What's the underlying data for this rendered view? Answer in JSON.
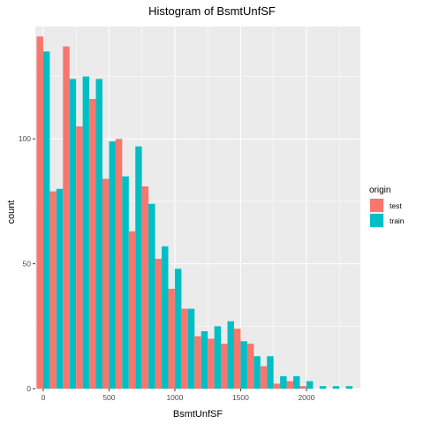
{
  "chart_data": {
    "type": "bar",
    "title": "Histogram of BsmtUnfSF",
    "xlabel": "BsmtUnfSF",
    "ylabel": "count",
    "xlim": [
      -60,
      2410
    ],
    "ylim": [
      0,
      145
    ],
    "x_ticks": [
      0,
      500,
      1000,
      1500,
      2000
    ],
    "y_ticks": [
      0,
      50,
      100
    ],
    "bin_centers": [
      0,
      100,
      200,
      300,
      400,
      500,
      600,
      700,
      800,
      900,
      1000,
      1100,
      1200,
      1300,
      1400,
      1500,
      1600,
      1700,
      1800,
      1900,
      2000,
      2100,
      2200,
      2300
    ],
    "series": [
      {
        "name": "test",
        "color": "#F8766D",
        "values": [
          141,
          79,
          137,
          105,
          116,
          84,
          100,
          63,
          81,
          52,
          40,
          32,
          21,
          20,
          18,
          24,
          18,
          9,
          2,
          3,
          1,
          0,
          0,
          0
        ]
      },
      {
        "name": "train",
        "color": "#00BFC4",
        "values": [
          135,
          80,
          124,
          125,
          124,
          99,
          85,
          97,
          74,
          57,
          48,
          32,
          23,
          25,
          27,
          19,
          13,
          13,
          5,
          5,
          3,
          1,
          1,
          1
        ]
      }
    ],
    "legend": {
      "title": "origin",
      "position": "right",
      "entries": [
        "test",
        "train"
      ]
    },
    "grid": true,
    "panel_background": "#EBEBEB",
    "grid_color": "#FFFFFF"
  }
}
